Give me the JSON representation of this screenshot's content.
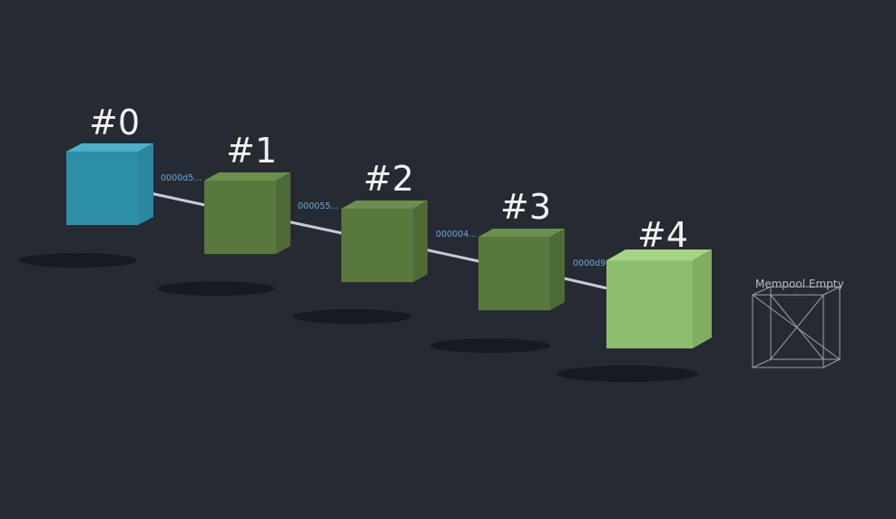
{
  "blocks": [
    {
      "label": "#0",
      "color": "#2d8ea8",
      "kind": "genesis"
    },
    {
      "label": "#1",
      "color": "#58783e",
      "kind": "block"
    },
    {
      "label": "#2",
      "color": "#58783e",
      "kind": "block"
    },
    {
      "label": "#3",
      "color": "#58783e",
      "kind": "block"
    },
    {
      "label": "#4",
      "color": "#8fbd6f",
      "kind": "head"
    }
  ],
  "links": [
    {
      "hash": "0000d5..."
    },
    {
      "hash": "000055..."
    },
    {
      "hash": "000004..."
    },
    {
      "hash": "0000d9..."
    }
  ],
  "mempool": {
    "label": "Mempool Empty",
    "wire_color": "#9a9ea6"
  },
  "colors": {
    "background": "#262a33",
    "link_line": "#c5cbd6",
    "hash_text": "#6aa8d6",
    "shadow": "#15181d"
  }
}
